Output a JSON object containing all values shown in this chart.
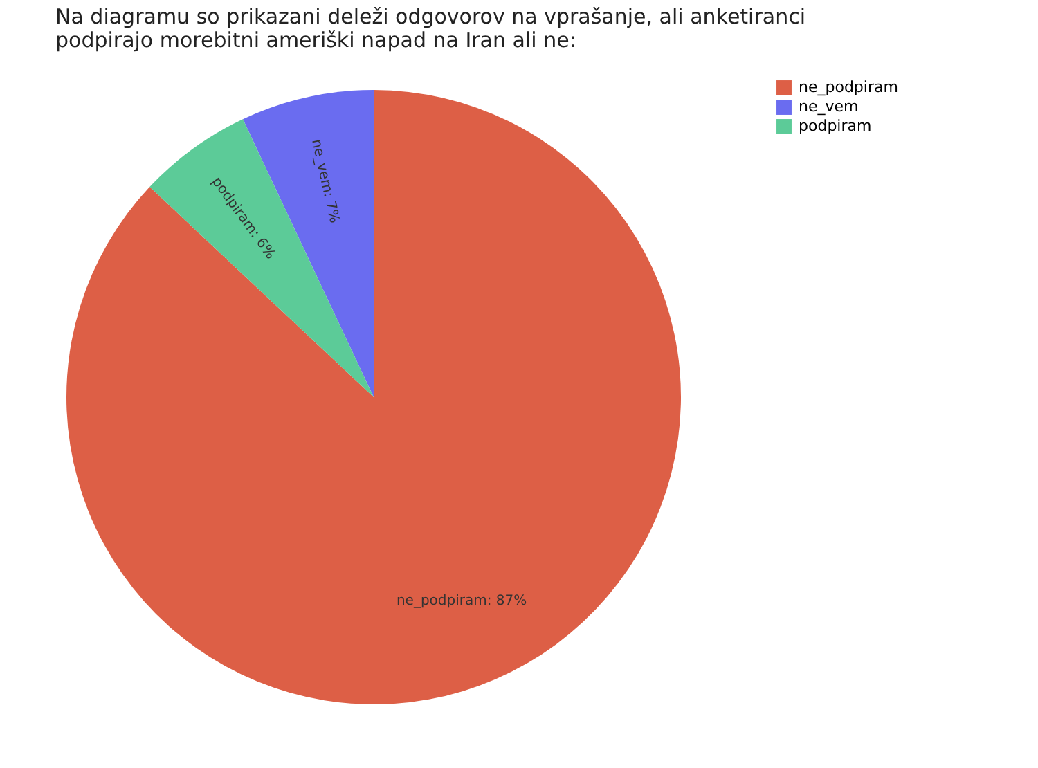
{
  "chart_data": {
    "type": "pie",
    "title": "Na diagramu so prikazani deleži odgovorov na vprašanje, ali anketiranci podpirajo morebitni ameriški napad na Iran ali ne:",
    "categories": [
      "ne_podpiram",
      "ne_vem",
      "podpiram"
    ],
    "values": [
      87,
      7,
      6
    ],
    "colors": [
      "#dd5f46",
      "#6a6cf0",
      "#5ccb98"
    ],
    "value_labels": [
      "ne_podpiram: 87%",
      "ne_vem: 7%",
      "podpiram: 6%"
    ],
    "legend": "top right"
  }
}
